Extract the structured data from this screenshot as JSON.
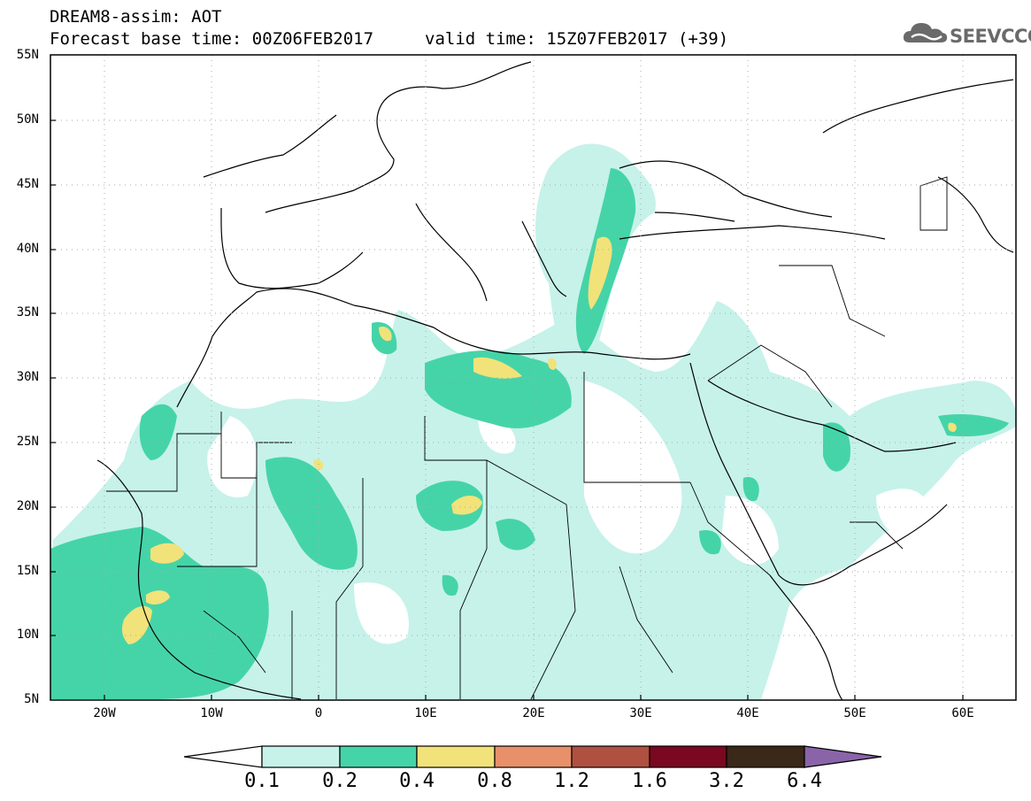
{
  "header": {
    "line1": "DREAM8-assim: AOT",
    "base_time": "Forecast base time: 00Z06FEB2017",
    "valid_time": "valid time: 15Z07FEB2017 (+39)"
  },
  "logo": {
    "text": "SEEVCCC",
    "icon": "cloud-icon"
  },
  "map": {
    "variable": "Aerosol optical thickness",
    "lon_range": [
      -25,
      65
    ],
    "lat_range": [
      5,
      55
    ],
    "lat_labels": [
      "55N",
      "50N",
      "45N",
      "40N",
      "35N",
      "30N",
      "25N",
      "20N",
      "15N",
      "10N",
      "5N"
    ],
    "lon_labels": [
      "20W",
      "10W",
      "0",
      "10E",
      "20E",
      "30E",
      "40E",
      "50E",
      "60E"
    ],
    "grid": "dotted"
  },
  "colorbar": {
    "levels": [
      "0.1",
      "0.2",
      "0.4",
      "0.8",
      "1.2",
      "1.6",
      "3.2",
      "6.4"
    ],
    "colors": [
      "#c6f2ea",
      "#45d4a8",
      "#f2e27a",
      "#e8906a",
      "#b05040",
      "#7a0820",
      "#3a2818",
      "#8a64a8"
    ],
    "under_color": "#ffffff"
  }
}
